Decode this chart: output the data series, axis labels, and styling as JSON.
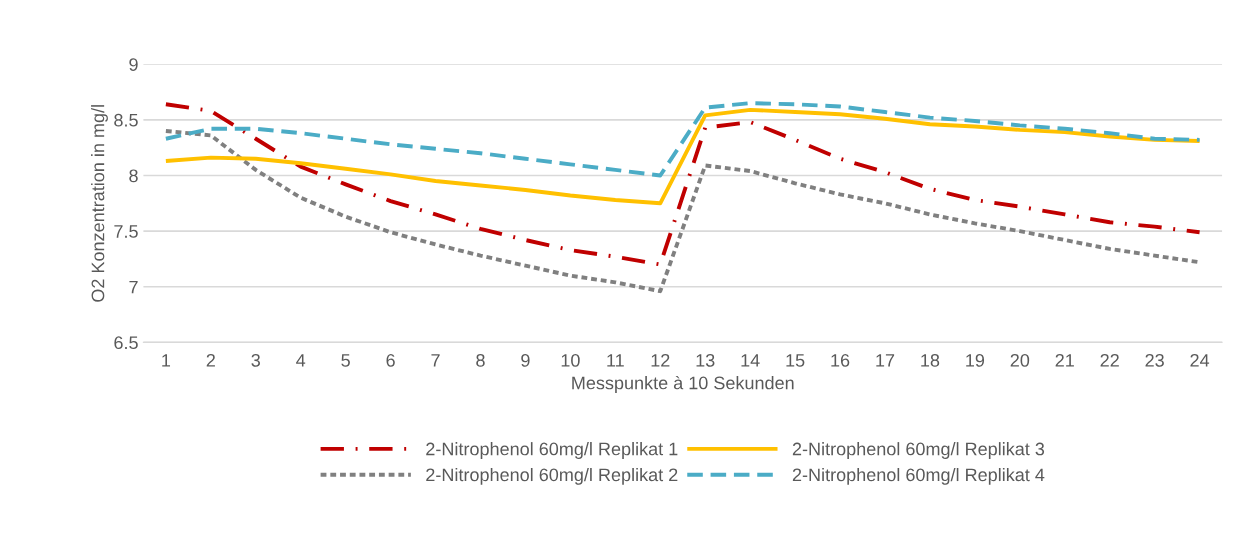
{
  "chart_data": {
    "type": "line",
    "xlabel": "Messpunkte à 10 Sekunden",
    "ylabel": "O2 Konzentration in mg/l",
    "categories": [
      "1",
      "2",
      "3",
      "4",
      "5",
      "6",
      "7",
      "8",
      "9",
      "10",
      "11",
      "12",
      "13",
      "14",
      "15",
      "16",
      "17",
      "18",
      "19",
      "20",
      "21",
      "22",
      "23",
      "24"
    ],
    "ylim": [
      6.5,
      9
    ],
    "yticks": [
      6.5,
      7,
      7.5,
      8,
      8.5,
      9
    ],
    "grid": "y",
    "legend": "bottom",
    "marker": "none",
    "series": [
      {
        "name": "2-Nitrophenol 60mg/l Replikat 1",
        "color": "#c00000",
        "line_style": "dashdot",
        "values": [
          8.64,
          8.58,
          8.33,
          8.08,
          7.92,
          7.77,
          7.65,
          7.52,
          7.42,
          7.33,
          7.27,
          7.2,
          8.43,
          8.48,
          8.32,
          8.15,
          8.03,
          7.88,
          7.78,
          7.72,
          7.65,
          7.58,
          7.54,
          7.49
        ]
      },
      {
        "name": "2-Nitrophenol 60mg/l Replikat 2",
        "color": "#808080",
        "line_style": "dotted",
        "values": [
          8.4,
          8.36,
          8.05,
          7.8,
          7.63,
          7.49,
          7.38,
          7.28,
          7.19,
          7.1,
          7.04,
          6.96,
          8.09,
          8.04,
          7.93,
          7.83,
          7.75,
          7.65,
          7.57,
          7.5,
          7.42,
          7.34,
          7.28,
          7.22
        ]
      },
      {
        "name": "2-Nitrophenol 60mg/l Replikat 3",
        "color": "#ffc000",
        "line_style": "solid",
        "values": [
          8.13,
          8.16,
          8.15,
          8.11,
          8.06,
          8.01,
          7.95,
          7.91,
          7.87,
          7.82,
          7.78,
          7.75,
          8.54,
          8.59,
          8.57,
          8.55,
          8.51,
          8.46,
          8.44,
          8.41,
          8.39,
          8.35,
          8.32,
          8.31
        ]
      },
      {
        "name": "2-Nitrophenol 60mg/l Replikat 4",
        "color": "#4bacc6",
        "line_style": "dashed",
        "values": [
          8.33,
          8.42,
          8.42,
          8.38,
          8.33,
          8.28,
          8.24,
          8.2,
          8.15,
          8.1,
          8.05,
          8.0,
          8.61,
          8.65,
          8.64,
          8.62,
          8.57,
          8.52,
          8.49,
          8.45,
          8.42,
          8.38,
          8.33,
          8.32
        ]
      }
    ]
  }
}
